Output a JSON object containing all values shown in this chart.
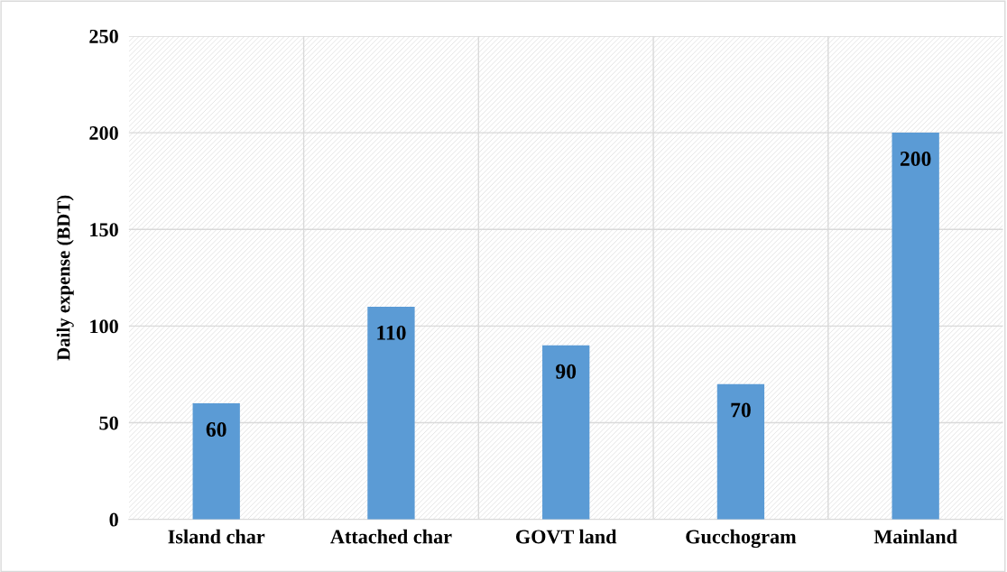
{
  "chart_data": {
    "type": "bar",
    "ylabel": "Daily expense (BDT)",
    "categories": [
      "Island char",
      "Attached char",
      "GOVT land",
      "Gucchogram",
      "Mainland"
    ],
    "values": [
      60,
      110,
      90,
      70,
      200
    ],
    "color": "#5b9bd5",
    "ylim": [
      0,
      250
    ],
    "yticks": [
      0,
      50,
      100,
      150,
      200,
      250
    ],
    "grid": true,
    "data_labels": true
  }
}
